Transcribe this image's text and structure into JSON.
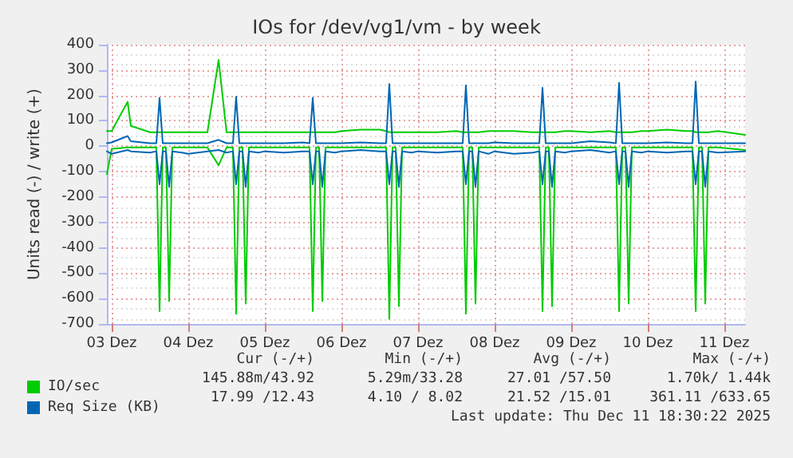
{
  "chart_data": {
    "type": "line",
    "title": "IOs for /dev/vg1/vm - by week",
    "ylabel": "Units read (-) / write (+)",
    "x": [
      "2025-12-02T22:30",
      "2025-12-03T00:00",
      "2025-12-03T05:00",
      "2025-12-03T06:00",
      "2025-12-03T12:00",
      "2025-12-03T14:00",
      "2025-12-03T15:00",
      "2025-12-03T16:00",
      "2025-12-03T17:00",
      "2025-12-03T18:00",
      "2025-12-03T19:00",
      "2025-12-03T22:00",
      "2025-12-04T00:00",
      "2025-12-04T06:00",
      "2025-12-04T09:30",
      "2025-12-04T12:00",
      "2025-12-04T14:00",
      "2025-12-04T15:00",
      "2025-12-04T16:00",
      "2025-12-04T17:00",
      "2025-12-04T18:00",
      "2025-12-04T19:00",
      "2025-12-04T22:00",
      "2025-12-05T00:00",
      "2025-12-05T06:00",
      "2025-12-05T12:00",
      "2025-12-05T14:00",
      "2025-12-05T15:00",
      "2025-12-05T16:00",
      "2025-12-05T17:00",
      "2025-12-05T18:00",
      "2025-12-05T19:00",
      "2025-12-05T22:00",
      "2025-12-06T00:00",
      "2025-12-06T06:00",
      "2025-12-06T12:00",
      "2025-12-06T14:00",
      "2025-12-06T15:00",
      "2025-12-06T16:00",
      "2025-12-06T17:00",
      "2025-12-06T18:00",
      "2025-12-06T19:00",
      "2025-12-06T22:00",
      "2025-12-07T00:00",
      "2025-12-07T06:00",
      "2025-12-07T12:00",
      "2025-12-07T14:00",
      "2025-12-07T15:00",
      "2025-12-07T16:00",
      "2025-12-07T17:00",
      "2025-12-07T18:00",
      "2025-12-07T19:00",
      "2025-12-07T22:00",
      "2025-12-08T00:00",
      "2025-12-08T06:00",
      "2025-12-08T12:00",
      "2025-12-08T14:00",
      "2025-12-08T15:00",
      "2025-12-08T16:00",
      "2025-12-08T17:00",
      "2025-12-08T18:00",
      "2025-12-08T19:00",
      "2025-12-08T22:00",
      "2025-12-09T00:00",
      "2025-12-09T06:00",
      "2025-12-09T12:00",
      "2025-12-09T14:00",
      "2025-12-09T15:00",
      "2025-12-09T16:00",
      "2025-12-09T17:00",
      "2025-12-09T18:00",
      "2025-12-09T19:00",
      "2025-12-09T22:00",
      "2025-12-10T00:00",
      "2025-12-10T06:00",
      "2025-12-10T12:00",
      "2025-12-10T14:00",
      "2025-12-10T15:00",
      "2025-12-10T16:00",
      "2025-12-10T17:00",
      "2025-12-10T18:00",
      "2025-12-10T19:00",
      "2025-12-10T22:00",
      "2025-12-11T06:30"
    ],
    "series": [
      {
        "name": "IO/sec",
        "color": "#00cc00",
        "values": [
          60,
          60,
          175,
          80,
          55,
          55,
          55,
          55,
          55,
          55,
          55,
          55,
          55,
          55,
          340,
          55,
          55,
          55,
          55,
          55,
          55,
          55,
          55,
          55,
          55,
          55,
          55,
          55,
          55,
          55,
          55,
          55,
          55,
          60,
          65,
          65,
          60,
          55,
          55,
          55,
          55,
          55,
          55,
          55,
          55,
          60,
          55,
          55,
          55,
          55,
          55,
          55,
          60,
          60,
          60,
          55,
          55,
          55,
          55,
          55,
          55,
          55,
          60,
          60,
          55,
          60,
          55,
          55,
          55,
          55,
          55,
          55,
          60,
          60,
          65,
          60,
          60,
          55,
          55,
          55,
          55,
          55,
          60,
          45
        ]
      },
      {
        "color": "#00cc00",
        "values": [
          -110,
          -10,
          -5,
          -5,
          -5,
          -5,
          -650,
          -5,
          -5,
          -610,
          -5,
          -5,
          -5,
          -5,
          -75,
          -5,
          -5,
          -660,
          -5,
          -5,
          -620,
          -5,
          -5,
          -5,
          -5,
          -5,
          -5,
          -650,
          -5,
          -5,
          -610,
          -5,
          -5,
          -5,
          -5,
          -5,
          -5,
          -680,
          -5,
          -5,
          -630,
          -5,
          -5,
          -5,
          -5,
          -5,
          -5,
          -660,
          -5,
          -5,
          -620,
          -5,
          -5,
          -5,
          -5,
          -5,
          -5,
          -650,
          -5,
          -5,
          -630,
          -5,
          -5,
          -5,
          -5,
          -5,
          -5,
          -650,
          -5,
          -5,
          -620,
          -5,
          -5,
          -5,
          -5,
          -5,
          -5,
          -650,
          -5,
          -5,
          -620,
          -5,
          -5,
          -15
        ]
      },
      {
        "name": "Req Size (KB)",
        "color": "#0066b3",
        "values": [
          12,
          15,
          40,
          20,
          12,
          12,
          190,
          12,
          12,
          12,
          12,
          12,
          12,
          12,
          25,
          12,
          12,
          195,
          12,
          12,
          12,
          12,
          12,
          12,
          12,
          15,
          12,
          190,
          12,
          12,
          12,
          12,
          12,
          12,
          15,
          12,
          12,
          245,
          12,
          12,
          12,
          12,
          12,
          12,
          12,
          12,
          12,
          240,
          12,
          12,
          12,
          12,
          12,
          15,
          12,
          12,
          12,
          230,
          12,
          12,
          12,
          12,
          12,
          12,
          20,
          15,
          12,
          250,
          12,
          12,
          12,
          12,
          12,
          12,
          15,
          12,
          12,
          255,
          12,
          12,
          12,
          12,
          12,
          12
        ]
      },
      {
        "color": "#0066b3",
        "values": [
          -20,
          -30,
          -15,
          -20,
          -25,
          -20,
          -150,
          -20,
          -20,
          -160,
          -20,
          -25,
          -30,
          -20,
          -15,
          -25,
          -20,
          -150,
          -20,
          -20,
          -160,
          -20,
          -25,
          -20,
          -25,
          -20,
          -20,
          -150,
          -20,
          -20,
          -160,
          -20,
          -25,
          -20,
          -15,
          -20,
          -20,
          -150,
          -20,
          -20,
          -160,
          -20,
          -25,
          -20,
          -25,
          -20,
          -20,
          -150,
          -20,
          -20,
          -160,
          -20,
          -30,
          -20,
          -30,
          -25,
          -20,
          -150,
          -20,
          -20,
          -160,
          -20,
          -25,
          -20,
          -15,
          -25,
          -20,
          -150,
          -20,
          -20,
          -160,
          -20,
          -25,
          -20,
          -25,
          -20,
          -20,
          -150,
          -20,
          -20,
          -160,
          -20,
          -25,
          -20
        ]
      }
    ],
    "xlim": [
      "2025-12-02T22:30",
      "2025-12-11T06:30"
    ],
    "xticks": [
      {
        "value": "2025-12-03",
        "label": "03 Dez"
      },
      {
        "value": "2025-12-04",
        "label": "04 Dez"
      },
      {
        "value": "2025-12-05",
        "label": "05 Dez"
      },
      {
        "value": "2025-12-06",
        "label": "06 Dez"
      },
      {
        "value": "2025-12-07",
        "label": "07 Dez"
      },
      {
        "value": "2025-12-08",
        "label": "08 Dez"
      },
      {
        "value": "2025-12-09",
        "label": "09 Dez"
      },
      {
        "value": "2025-12-10",
        "label": "10 Dez"
      },
      {
        "value": "2025-12-11",
        "label": "11 Dez"
      }
    ],
    "ylim": [
      -700,
      400
    ],
    "yticks": [
      -700,
      -600,
      -500,
      -400,
      -300,
      -200,
      -100,
      0,
      100,
      200,
      300,
      400
    ],
    "grid": true,
    "legend": "bottom left",
    "marker": "none",
    "line_style": "solid",
    "annotations": [
      "Cur (-/+)",
      "Min (-/+)",
      "Avg (-/+)",
      "Max (-/+)",
      "145.88m/43.92",
      "5.29m/33.28",
      "27.01 /57.50",
      "1.70k/ 1.44k",
      "17.99 /12.43",
      "4.10 / 8.02",
      "21.52 /15.01",
      "361.11 /633.65",
      "Last update: Thu Dec 11 18:30:22 2025"
    ]
  }
}
